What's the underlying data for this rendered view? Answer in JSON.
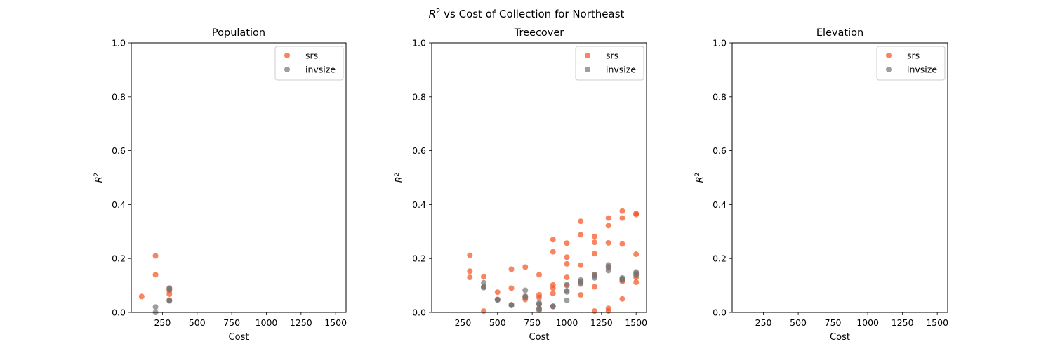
{
  "figure": {
    "title_prefix": "R",
    "title_sup": "2",
    "title_rest": " vs Cost of Collection for Northeast"
  },
  "colors": {
    "srs": "#f4511e",
    "invsize": "#757575",
    "axis": "#000000"
  },
  "chart_data": [
    {
      "type": "scatter",
      "title": "Population",
      "xlabel": "Cost",
      "ylabel": "R2",
      "xlim": [
        25,
        1575
      ],
      "ylim": [
        0,
        1.0
      ],
      "xticks": [
        250,
        500,
        750,
        1000,
        1250,
        1500
      ],
      "yticks": [
        0.0,
        0.2,
        0.4,
        0.6,
        0.8,
        1.0
      ],
      "legend": {
        "position": "top-right",
        "entries": [
          "srs",
          "invsize"
        ]
      },
      "series": [
        {
          "name": "srs",
          "color": "#f4511e",
          "points": [
            [
              100,
              0.059
            ],
            [
              200,
              0.21
            ],
            [
              200,
              0.14
            ],
            [
              300,
              0.08
            ],
            [
              300,
              0.068
            ],
            [
              300,
              0.09
            ],
            [
              300,
              0.045
            ]
          ]
        },
        {
          "name": "invsize",
          "color": "#757575",
          "points": [
            [
              200,
              0.02
            ],
            [
              200,
              0.0
            ],
            [
              300,
              0.09
            ],
            [
              300,
              0.085
            ],
            [
              300,
              0.045
            ],
            [
              300,
              0.043
            ]
          ]
        }
      ]
    },
    {
      "type": "scatter",
      "title": "Treecover",
      "xlabel": "Cost",
      "ylabel": "R2",
      "xlim": [
        25,
        1575
      ],
      "ylim": [
        0,
        1.0
      ],
      "xticks": [
        250,
        500,
        750,
        1000,
        1250,
        1500
      ],
      "yticks": [
        0.0,
        0.2,
        0.4,
        0.6,
        0.8,
        1.0
      ],
      "legend": {
        "position": "top-right",
        "entries": [
          "srs",
          "invsize"
        ]
      },
      "series": [
        {
          "name": "srs",
          "color": "#f4511e",
          "points": [
            [
              300,
              0.212
            ],
            [
              300,
              0.153
            ],
            [
              300,
              0.13
            ],
            [
              400,
              0.132
            ],
            [
              400,
              0.095
            ],
            [
              400,
              0.005
            ],
            [
              500,
              0.075
            ],
            [
              500,
              0.048
            ],
            [
              600,
              0.16
            ],
            [
              600,
              0.09
            ],
            [
              600,
              0.028
            ],
            [
              700,
              0.168
            ],
            [
              700,
              0.058
            ],
            [
              700,
              0.048
            ],
            [
              800,
              0.14
            ],
            [
              800,
              0.065
            ],
            [
              800,
              0.055
            ],
            [
              800,
              0.03
            ],
            [
              800,
              0.012
            ],
            [
              900,
              0.27
            ],
            [
              900,
              0.225
            ],
            [
              900,
              0.102
            ],
            [
              900,
              0.09
            ],
            [
              900,
              0.07
            ],
            [
              900,
              0.022
            ],
            [
              1000,
              0.257
            ],
            [
              1000,
              0.205
            ],
            [
              1000,
              0.18
            ],
            [
              1000,
              0.13
            ],
            [
              1000,
              0.1
            ],
            [
              1100,
              0.338
            ],
            [
              1100,
              0.288
            ],
            [
              1100,
              0.175
            ],
            [
              1100,
              0.11
            ],
            [
              1100,
              0.065
            ],
            [
              1200,
              0.282
            ],
            [
              1200,
              0.26
            ],
            [
              1200,
              0.218
            ],
            [
              1200,
              0.14
            ],
            [
              1200,
              0.095
            ],
            [
              1200,
              0.005
            ],
            [
              1300,
              0.35
            ],
            [
              1300,
              0.322
            ],
            [
              1300,
              0.258
            ],
            [
              1300,
              0.17
            ],
            [
              1300,
              0.015
            ],
            [
              1300,
              0.005
            ],
            [
              1400,
              0.376
            ],
            [
              1400,
              0.35
            ],
            [
              1400,
              0.254
            ],
            [
              1400,
              0.125
            ],
            [
              1400,
              0.115
            ],
            [
              1400,
              0.05
            ],
            [
              1500,
              0.367
            ],
            [
              1500,
              0.363
            ],
            [
              1500,
              0.216
            ],
            [
              1500,
              0.145
            ],
            [
              1500,
              0.13
            ],
            [
              1500,
              0.112
            ]
          ]
        },
        {
          "name": "invsize",
          "color": "#757575",
          "points": [
            [
              400,
              0.11
            ],
            [
              400,
              0.095
            ],
            [
              400,
              0.092
            ],
            [
              500,
              0.048
            ],
            [
              500,
              0.046
            ],
            [
              600,
              0.028
            ],
            [
              600,
              0.026
            ],
            [
              700,
              0.082
            ],
            [
              700,
              0.06
            ],
            [
              700,
              0.055
            ],
            [
              800,
              0.035
            ],
            [
              800,
              0.03
            ],
            [
              800,
              0.015
            ],
            [
              800,
              0.008
            ],
            [
              900,
              0.023
            ],
            [
              900,
              0.022
            ],
            [
              1000,
              0.103
            ],
            [
              1000,
              0.08
            ],
            [
              1000,
              0.076
            ],
            [
              1000,
              0.045
            ],
            [
              1100,
              0.12
            ],
            [
              1100,
              0.115
            ],
            [
              1100,
              0.105
            ],
            [
              1200,
              0.14
            ],
            [
              1200,
              0.135
            ],
            [
              1200,
              0.128
            ],
            [
              1300,
              0.176
            ],
            [
              1300,
              0.165
            ],
            [
              1300,
              0.155
            ],
            [
              1400,
              0.128
            ],
            [
              1400,
              0.122
            ],
            [
              1400,
              0.12
            ],
            [
              1500,
              0.15
            ],
            [
              1500,
              0.142
            ],
            [
              1500,
              0.138
            ]
          ]
        }
      ]
    },
    {
      "type": "scatter",
      "title": "Elevation",
      "xlabel": "Cost",
      "ylabel": "R2",
      "xlim": [
        25,
        1575
      ],
      "ylim": [
        0,
        1.0
      ],
      "xticks": [
        250,
        500,
        750,
        1000,
        1250,
        1500
      ],
      "yticks": [
        0.0,
        0.2,
        0.4,
        0.6,
        0.8,
        1.0
      ],
      "legend": {
        "position": "top-right",
        "entries": [
          "srs",
          "invsize"
        ]
      },
      "series": [
        {
          "name": "srs",
          "color": "#f4511e",
          "points": []
        },
        {
          "name": "invsize",
          "color": "#757575",
          "points": []
        }
      ]
    }
  ]
}
